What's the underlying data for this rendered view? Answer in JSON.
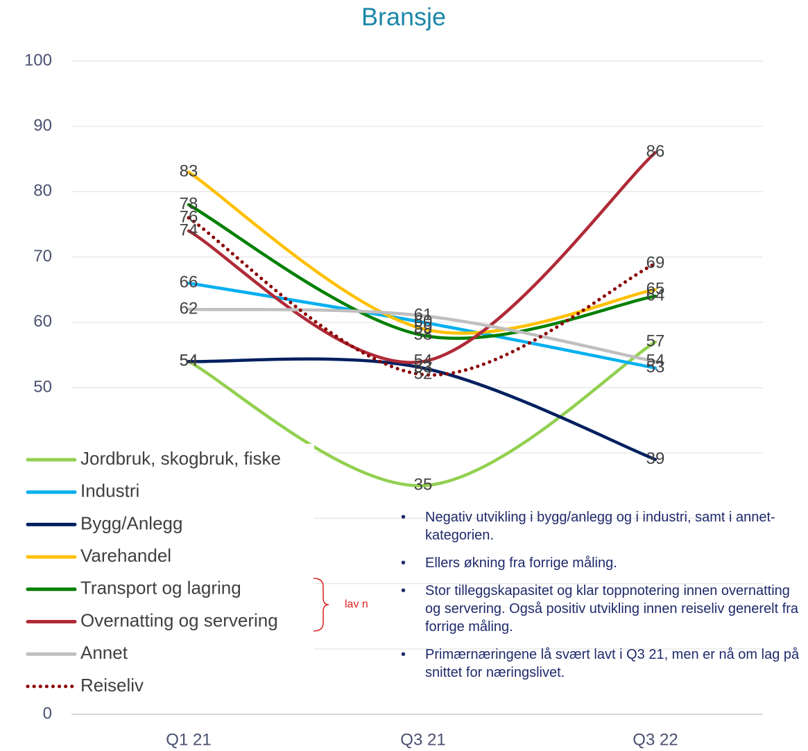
{
  "chart_data": {
    "type": "line",
    "title": "Bransje",
    "categories": [
      "Q1 21",
      "Q3 21",
      "Q3 22"
    ],
    "series": [
      {
        "name": "Jordbruk, skogbruk, fiske",
        "color": "#92d050",
        "values": [
          54,
          35,
          57
        ]
      },
      {
        "name": "Industri",
        "color": "#00b0f0",
        "values": [
          66,
          60,
          53
        ]
      },
      {
        "name": "Bygg/Anlegg",
        "color": "#002060",
        "values": [
          54,
          53,
          39
        ]
      },
      {
        "name": "Varehandel",
        "color": "#ffc000",
        "values": [
          83,
          59,
          65
        ]
      },
      {
        "name": "Transport og lagring",
        "color": "#008000",
        "values": [
          78,
          58,
          64
        ]
      },
      {
        "name": "Overnatting og servering",
        "color": "#b02a37",
        "values": [
          74,
          54,
          86
        ]
      },
      {
        "name": "Annet",
        "color": "#bfbfbf",
        "values": [
          62,
          61,
          54
        ]
      },
      {
        "name": "Reiseliv",
        "color": "#8b0000",
        "values": [
          76,
          52,
          69
        ],
        "dash": "dotted"
      }
    ],
    "ylim": [
      0,
      100
    ],
    "yticks": [
      0,
      10,
      20,
      30,
      40,
      50,
      60,
      70,
      80,
      90,
      100
    ],
    "grid": true,
    "annotation": "lav n",
    "bullets": [
      "Negativ utvikling i bygg/anlegg og i industri, samt i annet-kategorien.",
      "Ellers økning fra forrige måling.",
      "Stor tilleggskapasitet og klar toppnotering innen overnatting og servering. Også positiv utvikling innen reiseliv generelt fra forrige måling.",
      "Primærnæringene lå svært lavt i Q3 21, men er nå om lag på snittet for næringslivet."
    ]
  }
}
